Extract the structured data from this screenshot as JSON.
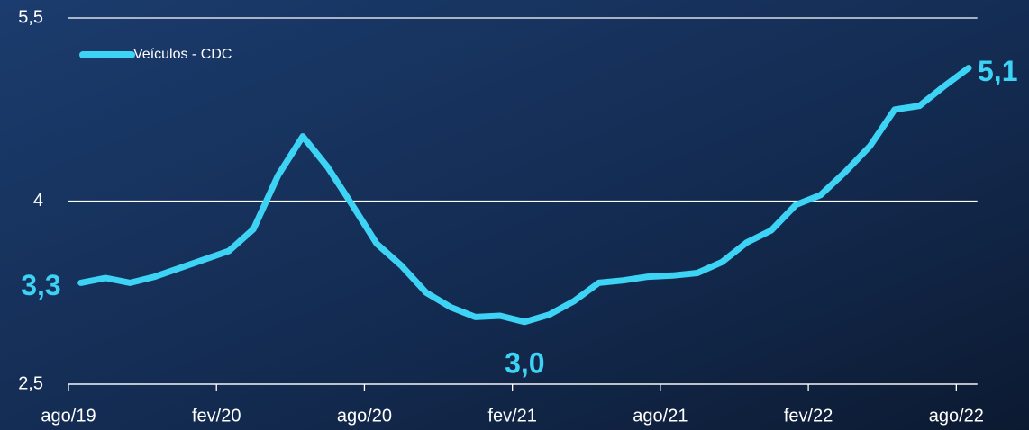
{
  "chart_data": {
    "type": "line",
    "categories": [
      "ago/19",
      null,
      null,
      null,
      null,
      null,
      "fev/20",
      null,
      null,
      null,
      null,
      null,
      "ago/20",
      null,
      null,
      null,
      null,
      null,
      "fev/21",
      null,
      null,
      null,
      null,
      null,
      "ago/21",
      null,
      null,
      null,
      null,
      null,
      "fev/22",
      null,
      null,
      null,
      null,
      null,
      "ago/22"
    ],
    "series": [
      {
        "name": "Veículos - CDC",
        "color": "#3dd3f5",
        "values": [
          3.33,
          3.37,
          3.33,
          3.38,
          3.45,
          3.52,
          3.59,
          3.77,
          4.21,
          4.53,
          4.28,
          3.97,
          3.65,
          3.47,
          3.25,
          3.13,
          3.05,
          3.06,
          3.01,
          3.07,
          3.18,
          3.33,
          3.35,
          3.38,
          3.39,
          3.41,
          3.5,
          3.66,
          3.76,
          3.97,
          4.05,
          4.24,
          4.45,
          4.75,
          4.78,
          4.94,
          5.09
        ],
        "value_labels": [
          "3,3",
          null,
          null,
          null,
          null,
          null,
          null,
          null,
          null,
          null,
          null,
          null,
          null,
          null,
          null,
          null,
          null,
          null,
          "3,0",
          null,
          null,
          null,
          null,
          null,
          null,
          null,
          null,
          null,
          null,
          null,
          null,
          null,
          null,
          null,
          null,
          null,
          "5,1"
        ]
      }
    ],
    "ylim": [
      2.5,
      5.5
    ],
    "yticks": [
      {
        "value": 2.5,
        "label": "2,5"
      },
      4,
      {
        "value": 5.5,
        "label": "5,5"
      }
    ],
    "grid": true,
    "legend": "top-left"
  }
}
